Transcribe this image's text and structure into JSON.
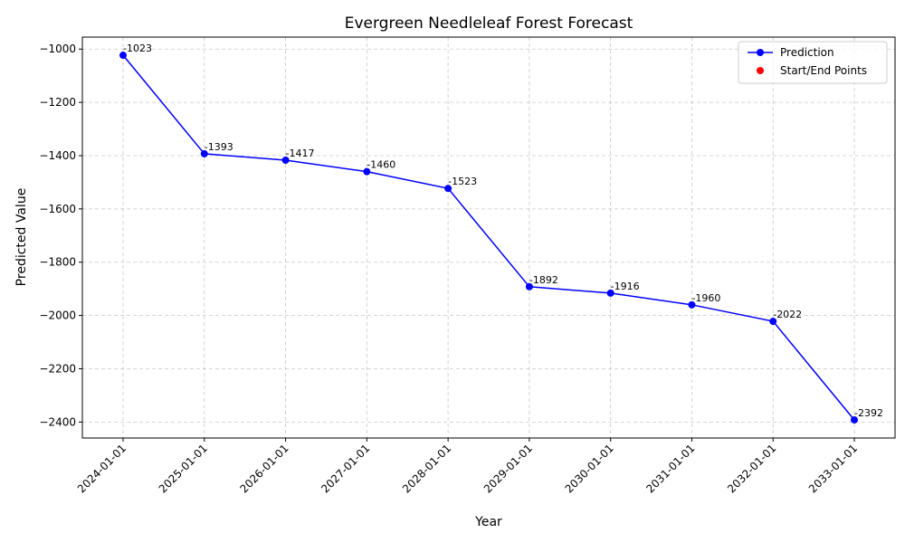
{
  "chart_data": {
    "type": "line",
    "title": "Evergreen Needleleaf Forest Forecast",
    "xlabel": "Year",
    "ylabel": "Predicted Value",
    "categories": [
      "2024-01-01",
      "2025-01-01",
      "2026-01-01",
      "2027-01-01",
      "2028-01-01",
      "2029-01-01",
      "2030-01-01",
      "2031-01-01",
      "2032-01-01",
      "2033-01-01"
    ],
    "series": [
      {
        "name": "Prediction",
        "values": [
          -1023,
          -1393,
          -1417,
          -1460,
          -1523,
          -1892,
          -1916,
          -1960,
          -2022,
          -2392
        ],
        "color": "#0000ff",
        "data_labels": [
          "-1023",
          "-1393",
          "-1417",
          "-1460",
          "-1523",
          "-1892",
          "-1916",
          "-1960",
          "-2022",
          "-2392"
        ]
      }
    ],
    "legend": {
      "position": "top-right",
      "entries": [
        {
          "label": "Prediction",
          "color": "#0000ff",
          "marker": "line-circle"
        },
        {
          "label": "Start/End Points",
          "color": "#ff0000",
          "marker": "circle"
        }
      ]
    },
    "ylim": [
      -2460,
      -955
    ],
    "yticks": [
      -1000,
      -1200,
      -1400,
      -1600,
      -1800,
      -2000,
      -2200,
      -2400
    ],
    "ytick_labels": [
      "−1000",
      "−1200",
      "−1400",
      "−1600",
      "−1800",
      "−2000",
      "−2200",
      "−2400"
    ],
    "grid": true
  }
}
